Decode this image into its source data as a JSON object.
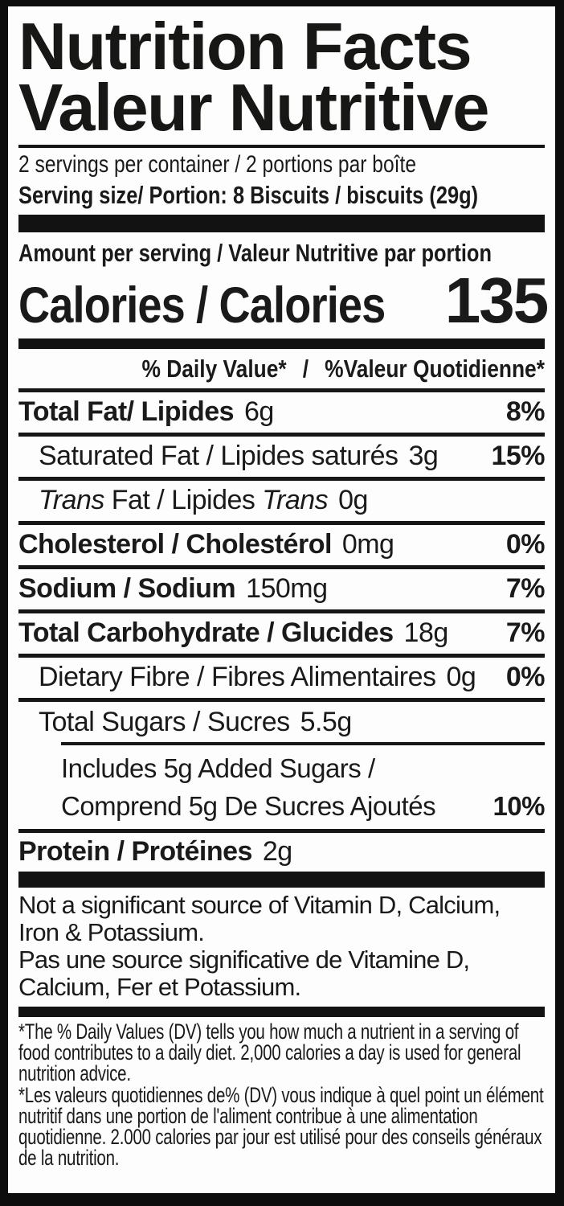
{
  "title": {
    "en": "Nutrition Facts",
    "fr": "Valeur Nutritive"
  },
  "serving": {
    "per_container": "2 servings per container / 2 portions par boîte",
    "size": "Serving size/ Portion: 8 Biscuits / biscuits (29g)"
  },
  "amount_per_serving": "Amount per serving / Valeur Nutritive par portion",
  "calories": {
    "label": "Calories / Calories",
    "value": "135"
  },
  "dv_header": {
    "en": "% Daily Value*",
    "sep": "/",
    "fr": "%Valeur Quotidienne*"
  },
  "nutrients": {
    "total_fat": {
      "name": "Total Fat/ Lipides",
      "amount": "6g",
      "dv": "8%"
    },
    "saturated_fat": {
      "name": "Saturated Fat / Lipides saturés",
      "amount": "3g",
      "dv": "15%"
    },
    "trans_fat": {
      "it1": "Trans",
      "mid": "Fat / Lipides",
      "it2": "Trans",
      "amount": "0g"
    },
    "cholesterol": {
      "name": "Cholesterol / Cholestérol",
      "amount": "0mg",
      "dv": "0%"
    },
    "sodium": {
      "name": "Sodium / Sodium",
      "amount": "150mg",
      "dv": "7%"
    },
    "total_carbohydrate": {
      "name": "Total Carbohydrate / Glucides",
      "amount": "18g",
      "dv": "7%"
    },
    "dietary_fibre": {
      "name": "Dietary Fibre / Fibres Alimentaires",
      "amount": "0g",
      "dv": "0%"
    },
    "total_sugars": {
      "name": "Total Sugars / Sucres",
      "amount": "5.5g"
    },
    "added_sugars": {
      "line1": "Includes 5g Added Sugars /",
      "line2": "Comprend 5g De Sucres Ajoutés",
      "dv": "10%"
    },
    "protein": {
      "name": "Protein / Protéines",
      "amount": "2g"
    }
  },
  "not_significant": {
    "en": "Not a significant source of Vitamin D, Calcium, Iron & Potassium.",
    "fr": "Pas une source significative de Vitamine D, Calcium, Fer et Potassium."
  },
  "footnotes": {
    "en": "*The % Daily Values (DV) tells you how much a nutrient in a serving of food contributes to a daily diet. 2,000 calories a day is used for general nutrition advice.",
    "fr": "*Les valeurs quotidiennes de% (DV) vous indique à quel point un élément nutritif dans une portion de l'aliment contribue à une alimentation quotidienne. 2.000 calories par jour est utilisé pour des conseils généraux de la nutrition."
  },
  "colors": {
    "ink": "#161616",
    "background": "#fdfdfd"
  }
}
